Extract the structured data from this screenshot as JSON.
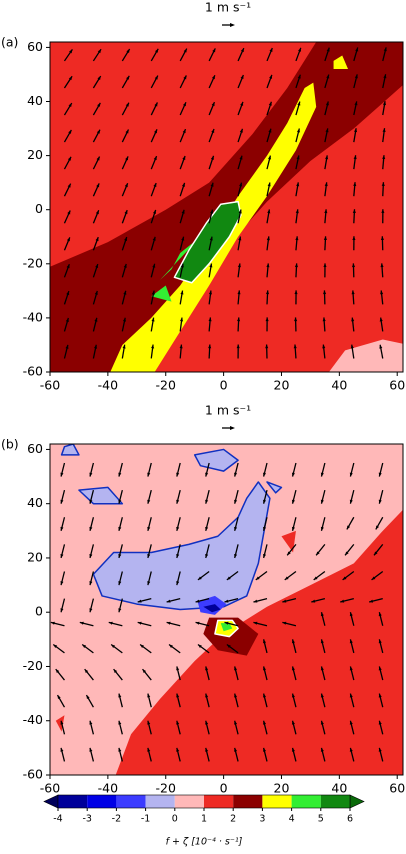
{
  "chart_data": [
    {
      "type": "contour",
      "label": "(a)",
      "quiver_key": "1 m s⁻¹",
      "xlim": [
        -60,
        62
      ],
      "ylim": [
        -60,
        62
      ],
      "xticks": [
        -60,
        -40,
        -20,
        0,
        20,
        40,
        60
      ],
      "yticks": [
        -60,
        -40,
        -20,
        0,
        20,
        40,
        60
      ]
    },
    {
      "type": "contour",
      "label": "(b)",
      "quiver_key": "1 m s⁻¹",
      "xlim": [
        -60,
        62
      ],
      "ylim": [
        -60,
        62
      ],
      "xticks": [
        -60,
        -40,
        -20,
        0,
        20,
        40,
        60
      ],
      "yticks": [
        -60,
        -40,
        -20,
        0,
        20,
        40,
        60
      ],
      "colorbar": {
        "label": "f + ζ [10⁻⁴ · s⁻¹]",
        "levels": [
          -4,
          -3,
          -2,
          -1,
          0,
          1,
          2,
          3,
          4,
          5,
          6
        ],
        "colors": [
          "#00005a",
          "#00009a",
          "#0000e6",
          "#3c3cff",
          "#b4b4f0",
          "#ffb8b8",
          "#ee2a24",
          "#8b0000",
          "#ffff00",
          "#33ee33",
          "#118811",
          "#0a6a0a"
        ]
      }
    }
  ]
}
